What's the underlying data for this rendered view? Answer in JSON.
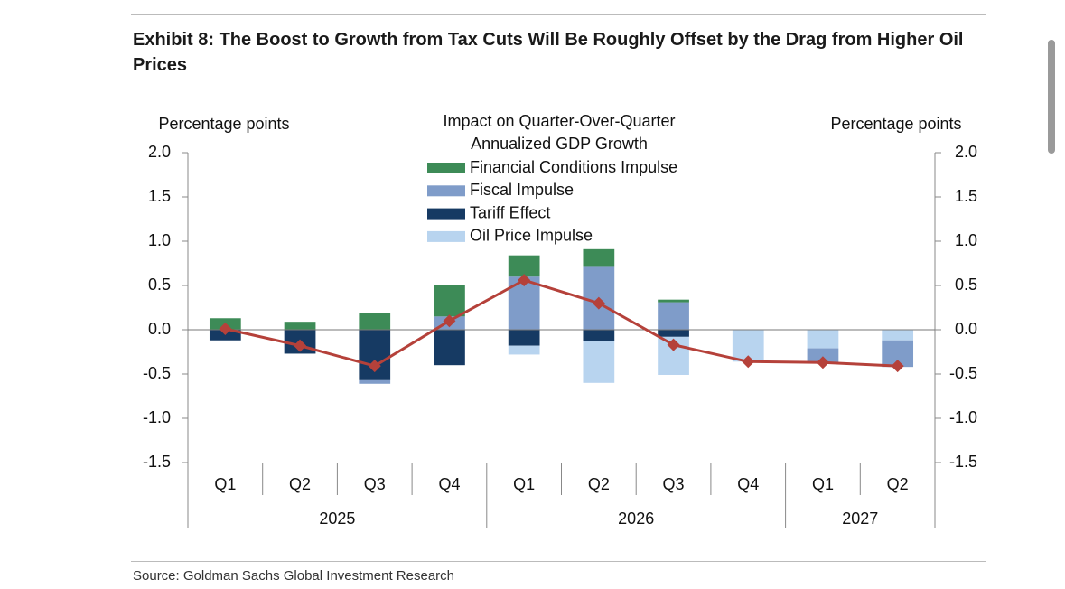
{
  "chart_data": {
    "type": "stacked-bar",
    "title": "Exhibit 8: The Boost to Growth from Tax Cuts Will Be Roughly Offset by the Drag from Higher Oil Prices",
    "legend_title": [
      "Impact on Quarter-Over-Quarter",
      "Annualized GDP Growth"
    ],
    "y_label": "Percentage points",
    "y2_label": "Percentage points",
    "source": "Source: Goldman Sachs Global Investment Research",
    "categories": [
      "Q1",
      "Q2",
      "Q3",
      "Q4",
      "Q1",
      "Q2",
      "Q3",
      "Q4",
      "Q1",
      "Q2"
    ],
    "groups": [
      {
        "label": "2025",
        "count": 4
      },
      {
        "label": "2026",
        "count": 4
      },
      {
        "label": "2027",
        "count": 2
      }
    ],
    "series": [
      {
        "name": "Financial Conditions Impulse",
        "color": "#3d8b57",
        "values": [
          0.13,
          0.09,
          0.19,
          0.36,
          0.24,
          0.2,
          0.03,
          0,
          0,
          0
        ]
      },
      {
        "name": "Fiscal Impulse",
        "color": "#7f9cc9",
        "values": [
          0,
          0,
          -0.04,
          0.15,
          0.6,
          0.71,
          0.31,
          0,
          -0.16,
          -0.3
        ]
      },
      {
        "name": "Tariff Effect",
        "color": "#163a63",
        "values": [
          -0.12,
          -0.27,
          -0.57,
          -0.4,
          -0.18,
          -0.13,
          -0.08,
          0,
          0,
          0
        ]
      },
      {
        "name": "Oil Price Impulse",
        "color": "#b8d4ef",
        "values": [
          0,
          0,
          0,
          0,
          -0.1,
          -0.47,
          -0.43,
          -0.36,
          -0.21,
          -0.12
        ]
      }
    ],
    "line": {
      "color": "#b5413a",
      "values": [
        0.01,
        -0.18,
        -0.41,
        0.1,
        0.56,
        0.3,
        -0.17,
        -0.36,
        -0.37,
        -0.41
      ]
    },
    "ylim": [
      -1.5,
      2.0
    ],
    "yticks": [
      {
        "value": -1.5,
        "label": "-1.5"
      },
      {
        "value": -1,
        "label": "-1.0"
      },
      {
        "value": -0.5,
        "label": "-0.5"
      },
      {
        "value": 0,
        "label": "0.0"
      },
      {
        "value": 0.5,
        "label": "0.5"
      },
      {
        "value": 1,
        "label": "1.0"
      },
      {
        "value": 1.5,
        "label": "1.5"
      },
      {
        "value": 2,
        "label": "2.0"
      }
    ],
    "y2lim": [
      -1.5,
      2.0
    ],
    "y2ticks": [
      {
        "value": -1.5,
        "label": "-1.5"
      },
      {
        "value": -1,
        "label": "-1.0"
      },
      {
        "value": -0.5,
        "label": "-0.5"
      },
      {
        "value": 0,
        "label": "0.0"
      },
      {
        "value": 0.5,
        "label": "0.5"
      },
      {
        "value": 1,
        "label": "1.0"
      },
      {
        "value": 1.5,
        "label": "1.5"
      },
      {
        "value": 2,
        "label": "2.0"
      }
    ]
  }
}
